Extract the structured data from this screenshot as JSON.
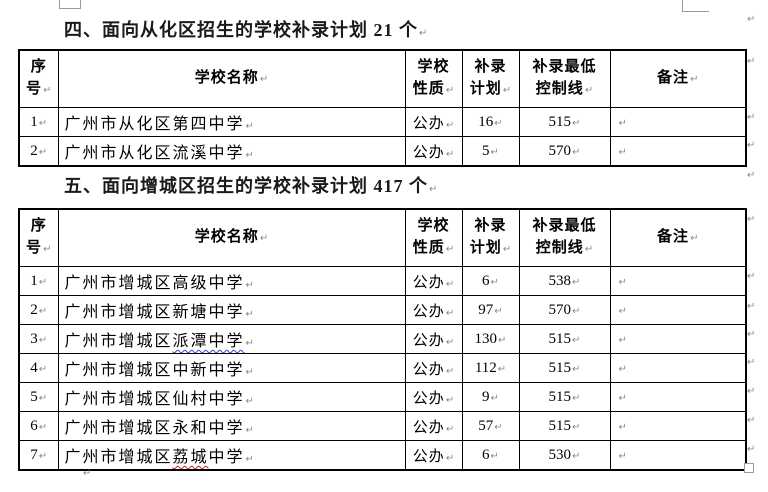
{
  "marks": {
    "pilcrow": "↵"
  },
  "colors": {
    "border": "#000000",
    "mark_gray": "#8a8a8a",
    "squiggle_blue": "#3344cc",
    "squiggle_red": "#cc2222"
  },
  "columns": {
    "headers": [
      "序\n号",
      "学校名称",
      "学校\n性质",
      "补录\n计划",
      "补录最低\n控制线",
      "备注"
    ]
  },
  "sections": [
    {
      "title": "四、面向从化区招生的学校补录计划 21 个",
      "rows": [
        {
          "no": "1",
          "name": [
            {
              "t": "广州市从化区第四中学"
            }
          ],
          "type": "公办",
          "plan": "16",
          "line": "515",
          "note": ""
        },
        {
          "no": "2",
          "name": [
            {
              "t": "广州市从化区流溪中学"
            }
          ],
          "type": "公办",
          "plan": "5",
          "line": "570",
          "note": ""
        }
      ]
    },
    {
      "title": "五、面向增城区招生的学校补录计划 417 个",
      "rows": [
        {
          "no": "1",
          "name": [
            {
              "t": "广州市增城区高级中学"
            }
          ],
          "type": "公办",
          "plan": "6",
          "line": "538",
          "note": ""
        },
        {
          "no": "2",
          "name": [
            {
              "t": "广州市增城区新塘中学"
            }
          ],
          "type": "公办",
          "plan": "97",
          "line": "570",
          "note": ""
        },
        {
          "no": "3",
          "name": [
            {
              "t": "广州市增城区"
            },
            {
              "t": "派潭中学",
              "u": "blue"
            }
          ],
          "type": "公办",
          "plan": "130",
          "line": "515",
          "note": ""
        },
        {
          "no": "4",
          "name": [
            {
              "t": "广州市增城区中新中学"
            }
          ],
          "type": "公办",
          "plan": "112",
          "line": "515",
          "note": ""
        },
        {
          "no": "5",
          "name": [
            {
              "t": "广州市增城区仙村中学"
            }
          ],
          "type": "公办",
          "plan": "9",
          "line": "515",
          "note": ""
        },
        {
          "no": "6",
          "name": [
            {
              "t": "广州市增城区永和中学"
            }
          ],
          "type": "公办",
          "plan": "57",
          "line": "515",
          "note": ""
        },
        {
          "no": "7",
          "name": [
            {
              "t": "广州市增城区"
            },
            {
              "t": "荔城",
              "u": "red"
            },
            {
              "t": "中学"
            }
          ],
          "type": "公办",
          "plan": "6",
          "line": "530",
          "note": ""
        }
      ]
    }
  ]
}
